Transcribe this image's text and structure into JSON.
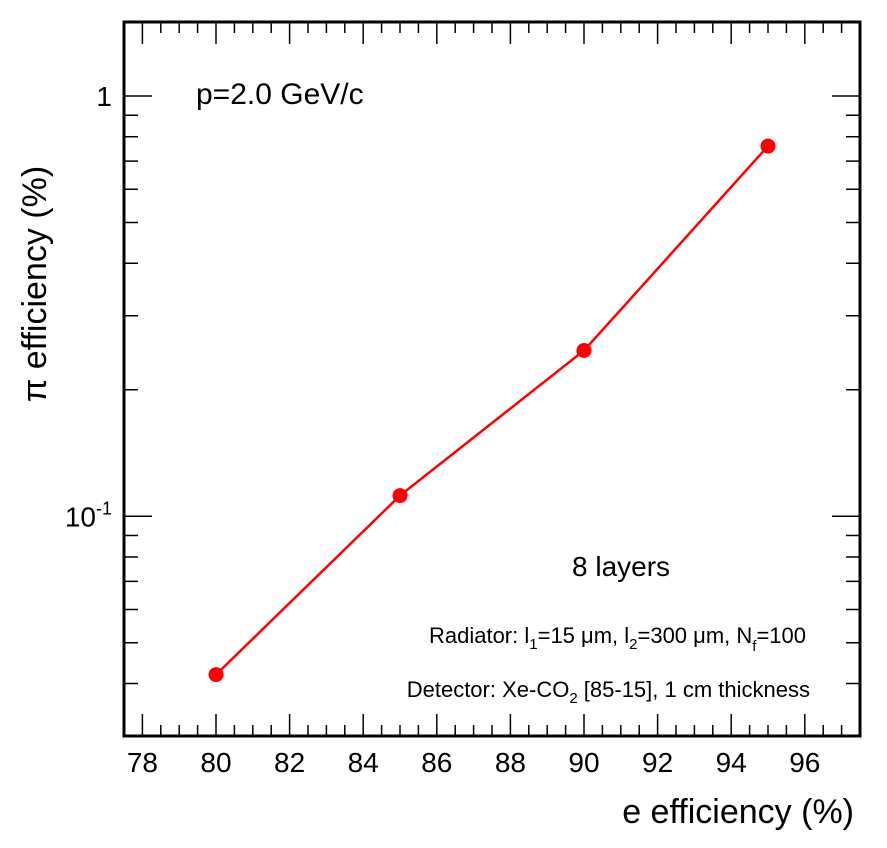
{
  "chart_data": {
    "type": "line",
    "title": "",
    "xlabel": "e efficiency (%)",
    "ylabel": "π efficiency (%)",
    "xscale": "linear",
    "yscale": "log",
    "xlim": [
      77.5,
      97.5
    ],
    "ylim": [
      0.03,
      1.5
    ],
    "x_ticks": [
      78,
      80,
      82,
      84,
      86,
      88,
      90,
      92,
      94,
      96
    ],
    "y_major_ticks": [
      {
        "value": 1,
        "base": "1",
        "exp": ""
      },
      {
        "value": 0.1,
        "base": "10",
        "exp": "-1"
      }
    ],
    "series": [
      {
        "name": "8 layers",
        "color": "#ff0000",
        "x": [
          80,
          85,
          90,
          95
        ],
        "y": [
          0.042,
          0.112,
          0.248,
          0.76
        ]
      }
    ],
    "annotations": {
      "momentum": "p=2.0 GeV/c",
      "layers": "8 layers",
      "radiator": {
        "prefix": "Radiator: l",
        "sub1": "1",
        "mid1": "=15 μm, l",
        "sub2": "2",
        "mid2": "=300 μm, N",
        "sub3": "f",
        "suffix": "=100"
      },
      "detector": {
        "prefix": "Detector: Xe-CO",
        "sub": "2",
        "suffix": " [85-15], 1 cm thickness"
      }
    }
  }
}
